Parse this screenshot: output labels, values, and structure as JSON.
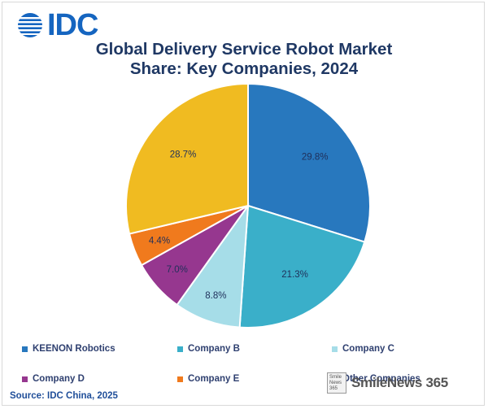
{
  "logo": {
    "text": "IDC"
  },
  "chart_data": {
    "type": "pie",
    "title_line1": "Global Delivery Service Robot Market",
    "title_line2": "Share: Key Companies, 2024",
    "slices": [
      {
        "label": "KEENON Robotics",
        "value": 29.8,
        "value_label": "29.8%",
        "color": "#2878be"
      },
      {
        "label": "Company B",
        "value": 21.3,
        "value_label": "21.3%",
        "color": "#3aafc9"
      },
      {
        "label": "Company C",
        "value": 8.8,
        "value_label": "8.8%",
        "color": "#a6dde8"
      },
      {
        "label": "Company D",
        "value": 7.0,
        "value_label": "7.0%",
        "color": "#96378f"
      },
      {
        "label": "Company E",
        "value": 4.4,
        "value_label": "4.4%",
        "color": "#f07a1d"
      },
      {
        "label": "Other Companies",
        "value": 28.7,
        "value_label": "28.7%",
        "color": "#f0bb21"
      }
    ],
    "legend_position": "bottom",
    "source": "Source: IDC China, 2025"
  },
  "watermark": {
    "badge": "Smile News 365",
    "text": "SmileNews 365"
  }
}
